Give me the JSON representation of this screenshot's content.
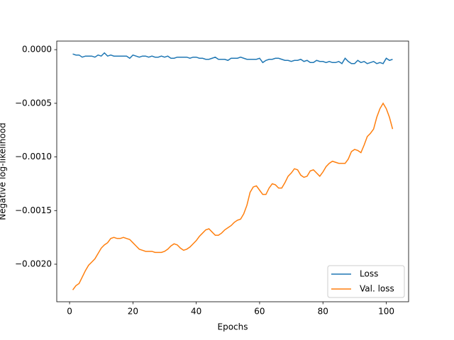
{
  "chart_data": {
    "type": "line",
    "xlabel": "Epochs",
    "ylabel": "Negative log-likelihood",
    "x": [
      1,
      2,
      3,
      4,
      5,
      6,
      7,
      8,
      9,
      10,
      11,
      12,
      13,
      14,
      15,
      16,
      17,
      18,
      19,
      20,
      21,
      22,
      23,
      24,
      25,
      26,
      27,
      28,
      29,
      30,
      31,
      32,
      33,
      34,
      35,
      36,
      37,
      38,
      39,
      40,
      41,
      42,
      43,
      44,
      45,
      46,
      47,
      48,
      49,
      50,
      51,
      52,
      53,
      54,
      55,
      56,
      57,
      58,
      59,
      60,
      61,
      62,
      63,
      64,
      65,
      66,
      67,
      68,
      69,
      70,
      71,
      72,
      73,
      74,
      75,
      76,
      77,
      78,
      79,
      80,
      81,
      82,
      83,
      84,
      85,
      86,
      87,
      88,
      89,
      90,
      91,
      92,
      93,
      94,
      95,
      96,
      97,
      98,
      99,
      100,
      101,
      102
    ],
    "series": [
      {
        "name": "Loss",
        "color": "#1f77b4",
        "values": [
          -4e-05,
          -5e-05,
          -5e-05,
          -7e-05,
          -6e-05,
          -6e-05,
          -6e-05,
          -7e-05,
          -5e-05,
          -6e-05,
          -3e-05,
          -6e-05,
          -5e-05,
          -6e-05,
          -6e-05,
          -6e-05,
          -6e-05,
          -6e-05,
          -8e-05,
          -5e-05,
          -6e-05,
          -7e-05,
          -6e-05,
          -6e-05,
          -7e-05,
          -6e-05,
          -7e-05,
          -7e-05,
          -6e-05,
          -7e-05,
          -6e-05,
          -8e-05,
          -8e-05,
          -7e-05,
          -7e-05,
          -7e-05,
          -7e-05,
          -8e-05,
          -7e-05,
          -7e-05,
          -8e-05,
          -8e-05,
          -9e-05,
          -9e-05,
          -8e-05,
          -7e-05,
          -9e-05,
          -9e-05,
          -9e-05,
          -0.0001,
          -8e-05,
          -8e-05,
          -8e-05,
          -7e-05,
          -8e-05,
          -9e-05,
          -9e-05,
          -9e-05,
          -9e-05,
          -8e-05,
          -0.00012,
          -0.0001,
          -9e-05,
          -9e-05,
          -8e-05,
          -8e-05,
          -9e-05,
          -0.0001,
          -0.0001,
          -0.00011,
          -0.0001,
          -0.0001,
          -9e-05,
          -0.00011,
          -0.0001,
          -0.00012,
          -0.00012,
          -0.0001,
          -0.00011,
          -0.00011,
          -0.00012,
          -0.00011,
          -0.00012,
          -0.00012,
          -0.00011,
          -0.00013,
          -8e-05,
          -0.00011,
          -0.00013,
          -0.00013,
          -0.0001,
          -0.00012,
          -0.00011,
          -0.00013,
          -0.00012,
          -0.00011,
          -0.00013,
          -0.00012,
          -0.00013,
          -8e-05,
          -0.0001,
          -9e-05
        ]
      },
      {
        "name": "Val. loss",
        "color": "#ff7f0e",
        "values": [
          -0.00224,
          -0.0022,
          -0.00218,
          -0.00212,
          -0.00206,
          -0.00201,
          -0.00198,
          -0.00195,
          -0.0019,
          -0.00185,
          -0.00182,
          -0.0018,
          -0.00176,
          -0.00175,
          -0.00176,
          -0.00176,
          -0.00175,
          -0.00176,
          -0.00177,
          -0.0018,
          -0.00183,
          -0.00186,
          -0.00187,
          -0.00188,
          -0.00188,
          -0.00188,
          -0.00189,
          -0.00189,
          -0.00189,
          -0.00188,
          -0.00186,
          -0.00183,
          -0.00181,
          -0.00182,
          -0.00185,
          -0.00187,
          -0.00186,
          -0.00184,
          -0.00181,
          -0.00178,
          -0.00174,
          -0.00171,
          -0.00168,
          -0.00167,
          -0.0017,
          -0.00173,
          -0.00173,
          -0.00171,
          -0.00168,
          -0.00166,
          -0.00164,
          -0.00161,
          -0.00159,
          -0.00158,
          -0.00153,
          -0.00145,
          -0.00133,
          -0.00128,
          -0.00127,
          -0.00131,
          -0.00135,
          -0.00135,
          -0.00129,
          -0.00125,
          -0.00126,
          -0.00129,
          -0.00129,
          -0.00124,
          -0.00118,
          -0.00115,
          -0.00111,
          -0.00112,
          -0.00117,
          -0.00119,
          -0.00118,
          -0.00113,
          -0.00112,
          -0.00115,
          -0.00118,
          -0.00114,
          -0.00109,
          -0.00106,
          -0.00104,
          -0.00105,
          -0.00106,
          -0.00106,
          -0.00106,
          -0.00102,
          -0.00095,
          -0.00093,
          -0.00094,
          -0.00096,
          -0.00089,
          -0.00081,
          -0.00078,
          -0.00074,
          -0.00063,
          -0.00055,
          -0.0005,
          -0.00055,
          -0.00063,
          -0.00074
        ]
      }
    ],
    "xlim": [
      -4.05,
      107.05
    ],
    "xticks": [
      0,
      20,
      40,
      60,
      80,
      100
    ],
    "ylim": [
      -0.00235,
      8e-05
    ],
    "yticks": [
      {
        "value": 0,
        "label": "0.0000"
      },
      {
        "value": -0.0005,
        "label": "−0.0005"
      },
      {
        "value": -0.001,
        "label": "−0.0010"
      },
      {
        "value": -0.0015,
        "label": "−0.0015"
      },
      {
        "value": -0.002,
        "label": "−0.0020"
      }
    ],
    "legend": "lower right",
    "grid": false
  }
}
